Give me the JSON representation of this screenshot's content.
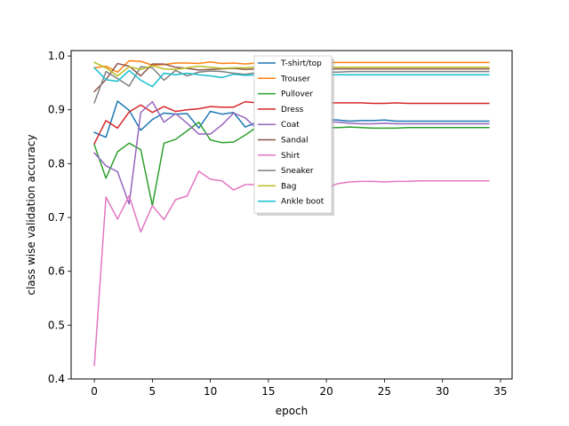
{
  "chart_data": {
    "type": "line",
    "title": "",
    "xlabel": "epoch",
    "ylabel": "class wise validation accuracy",
    "xlim": [
      -2,
      36
    ],
    "ylim": [
      0.4,
      1.01
    ],
    "xticks": [
      0,
      5,
      10,
      15,
      20,
      25,
      30,
      35
    ],
    "yticks": [
      0.4,
      0.5,
      0.6,
      0.7,
      0.8,
      0.9,
      1.0
    ],
    "xtick_labels": [
      "0",
      "5",
      "10",
      "15",
      "20",
      "25",
      "30",
      "35"
    ],
    "ytick_labels": [
      "0.4",
      "0.5",
      "0.6",
      "0.7",
      "0.8",
      "0.9",
      "1.0"
    ],
    "grid": false,
    "legend_position": "upper-center",
    "x": [
      0,
      1,
      2,
      3,
      4,
      5,
      6,
      7,
      8,
      9,
      10,
      11,
      12,
      13,
      14,
      15,
      16,
      17,
      18,
      19,
      20,
      21,
      22,
      23,
      24,
      25,
      26,
      27,
      28,
      29,
      30,
      31,
      32,
      33,
      34
    ],
    "series": [
      {
        "name": "T-shirt/top",
        "color": "#1f77b4",
        "values": [
          0.858,
          0.849,
          0.916,
          0.899,
          0.862,
          0.882,
          0.894,
          0.892,
          0.893,
          0.866,
          0.897,
          0.892,
          0.895,
          0.868,
          0.877,
          0.88,
          0.882,
          0.881,
          0.88,
          0.881,
          0.882,
          0.881,
          0.879,
          0.88,
          0.88,
          0.881,
          0.879,
          0.879,
          0.879,
          0.879,
          0.879,
          0.879,
          0.879,
          0.879,
          0.879
        ]
      },
      {
        "name": "Trouser",
        "color": "#ff7f0e",
        "values": [
          0.978,
          0.981,
          0.97,
          0.991,
          0.99,
          0.983,
          0.984,
          0.987,
          0.987,
          0.986,
          0.989,
          0.986,
          0.987,
          0.985,
          0.987,
          0.988,
          0.987,
          0.988,
          0.987,
          0.988,
          0.988,
          0.988,
          0.988,
          0.988,
          0.988,
          0.988,
          0.988,
          0.988,
          0.988,
          0.988,
          0.988,
          0.988,
          0.988,
          0.988,
          0.988
        ]
      },
      {
        "name": "Pullover",
        "color": "#2ca02c",
        "values": [
          0.835,
          0.773,
          0.822,
          0.838,
          0.826,
          0.722,
          0.838,
          0.845,
          0.861,
          0.877,
          0.844,
          0.839,
          0.84,
          0.853,
          0.868,
          0.87,
          0.866,
          0.868,
          0.867,
          0.869,
          0.867,
          0.867,
          0.868,
          0.867,
          0.866,
          0.866,
          0.866,
          0.867,
          0.867,
          0.867,
          0.867,
          0.867,
          0.867,
          0.867,
          0.867
        ]
      },
      {
        "name": "Dress",
        "color": "#d62728",
        "values": [
          0.837,
          0.88,
          0.866,
          0.896,
          0.909,
          0.895,
          0.906,
          0.897,
          0.9,
          0.902,
          0.906,
          0.905,
          0.905,
          0.915,
          0.913,
          0.914,
          0.912,
          0.914,
          0.912,
          0.913,
          0.913,
          0.913,
          0.913,
          0.913,
          0.912,
          0.912,
          0.913,
          0.912,
          0.912,
          0.912,
          0.912,
          0.912,
          0.912,
          0.912,
          0.912
        ]
      },
      {
        "name": "Coat",
        "color": "#9467bd",
        "values": [
          0.82,
          0.796,
          0.785,
          0.725,
          0.895,
          0.915,
          0.877,
          0.893,
          0.875,
          0.855,
          0.855,
          0.872,
          0.894,
          0.885,
          0.865,
          0.876,
          0.873,
          0.874,
          0.876,
          0.875,
          0.878,
          0.877,
          0.875,
          0.874,
          0.874,
          0.875,
          0.874,
          0.874,
          0.874,
          0.874,
          0.874,
          0.874,
          0.874,
          0.874,
          0.874
        ]
      },
      {
        "name": "Sandal",
        "color": "#8c564b",
        "values": [
          0.934,
          0.956,
          0.986,
          0.981,
          0.963,
          0.985,
          0.985,
          0.979,
          0.977,
          0.974,
          0.975,
          0.976,
          0.977,
          0.975,
          0.976,
          0.976,
          0.976,
          0.976,
          0.977,
          0.976,
          0.976,
          0.976,
          0.976,
          0.976,
          0.976,
          0.976,
          0.976,
          0.976,
          0.976,
          0.976,
          0.976,
          0.976,
          0.976,
          0.976,
          0.976
        ]
      },
      {
        "name": "Shirt",
        "color": "#e377c2",
        "values": [
          0.425,
          0.738,
          0.697,
          0.74,
          0.673,
          0.722,
          0.696,
          0.733,
          0.74,
          0.786,
          0.771,
          0.768,
          0.751,
          0.761,
          0.761,
          0.763,
          0.763,
          0.76,
          0.758,
          0.756,
          0.755,
          0.763,
          0.766,
          0.767,
          0.767,
          0.766,
          0.767,
          0.767,
          0.768,
          0.768,
          0.768,
          0.768,
          0.768,
          0.768,
          0.768
        ]
      },
      {
        "name": "Sneaker",
        "color": "#7f7f7f",
        "values": [
          0.913,
          0.971,
          0.958,
          0.944,
          0.98,
          0.978,
          0.955,
          0.973,
          0.963,
          0.97,
          0.972,
          0.971,
          0.968,
          0.966,
          0.969,
          0.969,
          0.969,
          0.97,
          0.97,
          0.97,
          0.97,
          0.97,
          0.971,
          0.971,
          0.971,
          0.971,
          0.971,
          0.971,
          0.971,
          0.971,
          0.971,
          0.971,
          0.971,
          0.971,
          0.971
        ]
      },
      {
        "name": "Bag",
        "color": "#bcbd22",
        "values": [
          0.988,
          0.978,
          0.963,
          0.98,
          0.975,
          0.982,
          0.976,
          0.975,
          0.978,
          0.981,
          0.979,
          0.977,
          0.978,
          0.978,
          0.979,
          0.979,
          0.979,
          0.979,
          0.979,
          0.979,
          0.979,
          0.979,
          0.979,
          0.979,
          0.979,
          0.979,
          0.979,
          0.979,
          0.979,
          0.979,
          0.979,
          0.979,
          0.979,
          0.979,
          0.979
        ]
      },
      {
        "name": "Ankle boot",
        "color": "#17becf",
        "values": [
          0.978,
          0.956,
          0.953,
          0.973,
          0.955,
          0.943,
          0.968,
          0.965,
          0.968,
          0.965,
          0.963,
          0.96,
          0.966,
          0.964,
          0.965,
          0.966,
          0.964,
          0.965,
          0.965,
          0.965,
          0.965,
          0.965,
          0.965,
          0.965,
          0.965,
          0.965,
          0.965,
          0.965,
          0.965,
          0.965,
          0.965,
          0.965,
          0.965,
          0.965,
          0.965
        ]
      }
    ]
  }
}
